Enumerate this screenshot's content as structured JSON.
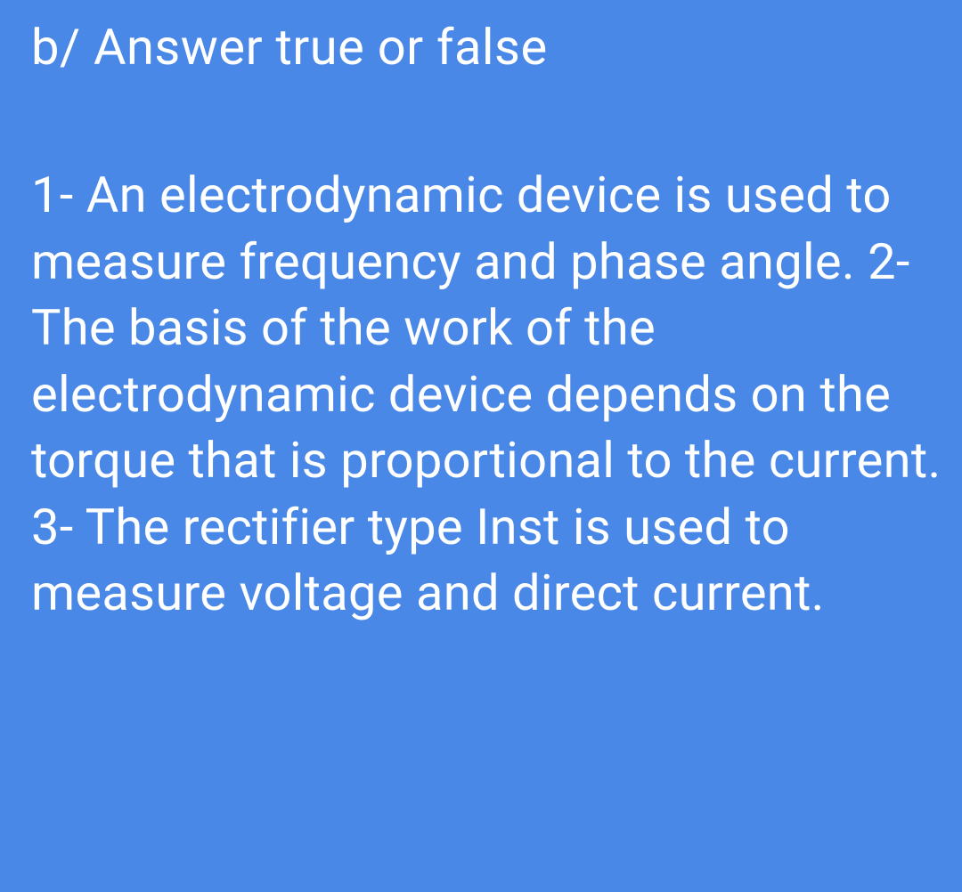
{
  "document": {
    "heading": "b/ Answer true or false",
    "body": " 1- An electrodynamic device is used to measure frequency and phase angle.  2- The basis of the work of the electrodynamic device depends on the torque that is proportional to the current. 3- The rectifier type Inst is used to measure voltage and direct current.",
    "background_color": "#4a88e8",
    "text_color": "#ffffff",
    "font_size": 56,
    "line_height": 1.33
  }
}
